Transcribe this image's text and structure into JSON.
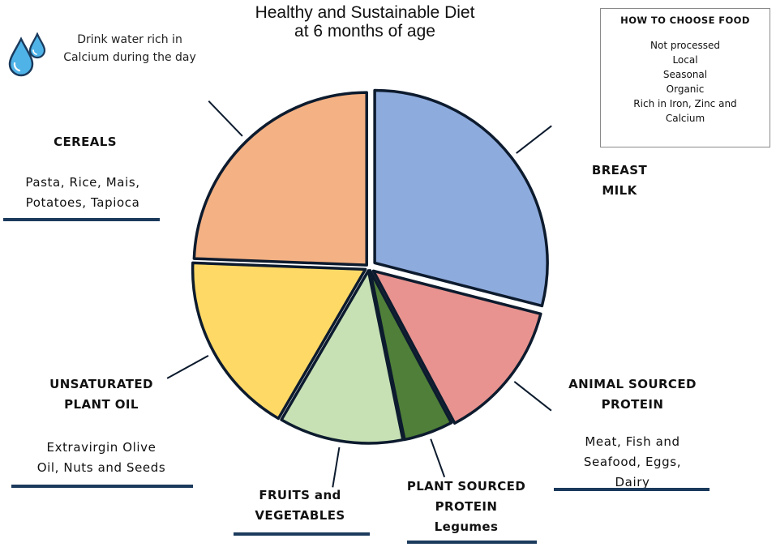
{
  "title_lines": [
    "Healthy and Sustainable Diet",
    "at 6 months of age"
  ],
  "water_note": {
    "icon": "water-drops-icon",
    "lines": [
      "Drink water rich in",
      "Calcium during the day"
    ]
  },
  "how_to_choose": {
    "title": "HOW TO CHOOSE FOOD",
    "items": [
      "Not processed",
      "Local",
      "Seasonal",
      "Organic",
      "Rich in Iron, Zinc and Calcium"
    ]
  },
  "labels": {
    "breast_milk": {
      "heading": [
        "BREAST",
        "MILK"
      ]
    },
    "animal_protein": {
      "heading": [
        "ANIMAL SOURCED",
        "PROTEIN"
      ],
      "desc": [
        "Meat, Fish and",
        "Seafood, Eggs,",
        "Dairy"
      ]
    },
    "plant_protein": {
      "heading": [
        "PLANT SOURCED",
        "PROTEIN"
      ],
      "desc": [
        "Legumes"
      ]
    },
    "fruits_veg": {
      "heading": [
        "FRUITS and",
        "VEGETABLES"
      ]
    },
    "plant_oil": {
      "heading": [
        "UNSATURATED",
        "PLANT OIL"
      ],
      "desc": [
        "Extravirgin Olive",
        "Oil, Nuts and Seeds"
      ]
    },
    "cereals": {
      "heading": [
        "CEREALS"
      ],
      "desc": [
        "Pasta, Rice, Mais,",
        "Potatoes, Tapioca"
      ]
    }
  },
  "colors": {
    "breast_milk": "#8eabdd",
    "animal_protein": "#e8938f",
    "plant_protein": "#4f7f38",
    "fruits_veg": "#c7e0b4",
    "plant_oil": "#ffd966",
    "cereals": "#f4b183",
    "outline": "#0d1b2e",
    "underline": "#1b3a5c",
    "drop": "#4fb3e8"
  },
  "chart_data": {
    "type": "pie",
    "title": "Healthy and Sustainable Diet at 6 months of age",
    "start_angle_deg": 0,
    "direction": "clockwise",
    "slices": [
      {
        "key": "breast_milk",
        "label": "BREAST MILK",
        "value": 29
      },
      {
        "key": "animal_protein",
        "label": "ANIMAL SOURCED PROTEIN",
        "value": 13.2
      },
      {
        "key": "plant_protein",
        "label": "PLANT SOURCED PROTEIN",
        "value": 4.6
      },
      {
        "key": "fruits_veg",
        "label": "FRUITS and VEGETABLES",
        "value": 11.6
      },
      {
        "key": "plant_oil",
        "label": "UNSATURATED PLANT OIL",
        "value": 17.2
      },
      {
        "key": "cereals",
        "label": "CEREALS",
        "value": 24.4
      }
    ]
  }
}
